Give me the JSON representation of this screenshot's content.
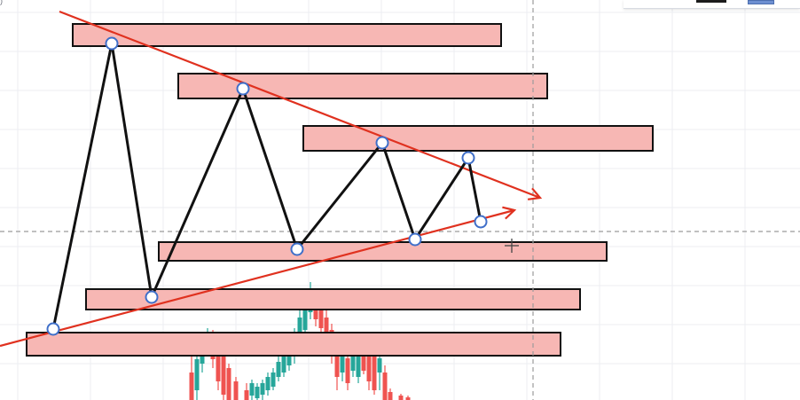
{
  "colors": {
    "background": "#ffffff",
    "grid": "#eceef2",
    "zone_fill": "#f7b7b4",
    "zone_stroke": "#111111",
    "trendline": "#e0311f",
    "zigzag": "#111111",
    "point_fill": "#ffffff",
    "point_stroke": "#3f6fc9",
    "crosshair": "#9b9b9b",
    "candle_up": "#26a69a",
    "candle_down": "#ef5350"
  },
  "icons": {
    "cursor": "crosshair-cursor-icon"
  },
  "toolbar": {
    "swatch_dark": "#1c1c1c",
    "swatch_blue": "#6d8fd1"
  }
}
